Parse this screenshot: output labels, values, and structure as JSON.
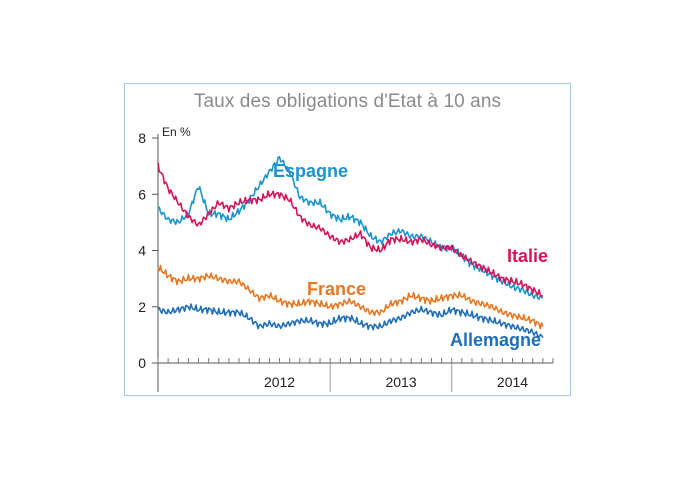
{
  "chart_data": {
    "type": "line",
    "title": "Taux des obligations d'Etat à 10 ans",
    "ylabel": "En %",
    "ylim": [
      0,
      8
    ],
    "yticks": [
      "0",
      "2",
      "4",
      "6",
      "8"
    ],
    "xlim": [
      "2011-07",
      "2014-10"
    ],
    "year_labels": [
      {
        "label": "2012",
        "mid": "2012-07"
      },
      {
        "label": "2013",
        "mid": "2013-07"
      },
      {
        "label": "2014",
        "mid": "2014-06"
      }
    ],
    "year_boundaries": [
      "2012-12",
      "2013-12"
    ],
    "series": [
      {
        "name": "Espagne",
        "color": "#1a94cc",
        "points": [
          [
            "2011-07",
            5.5
          ],
          [
            "2011-08",
            5.1
          ],
          [
            "2011-09",
            5.0
          ],
          [
            "2011-10",
            5.3
          ],
          [
            "2011-11",
            6.3
          ],
          [
            "2011-12",
            5.3
          ],
          [
            "2012-01",
            5.3
          ],
          [
            "2012-02",
            5.1
          ],
          [
            "2012-03",
            5.4
          ],
          [
            "2012-04",
            5.8
          ],
          [
            "2012-05",
            6.3
          ],
          [
            "2012-06",
            6.8
          ],
          [
            "2012-07",
            7.3
          ],
          [
            "2012-08",
            6.8
          ],
          [
            "2012-09",
            5.9
          ],
          [
            "2012-10",
            5.7
          ],
          [
            "2012-11",
            5.7
          ],
          [
            "2012-12",
            5.3
          ],
          [
            "2013-01",
            5.1
          ],
          [
            "2013-02",
            5.2
          ],
          [
            "2013-03",
            5.0
          ],
          [
            "2013-04",
            4.5
          ],
          [
            "2013-05",
            4.3
          ],
          [
            "2013-06",
            4.6
          ],
          [
            "2013-07",
            4.7
          ],
          [
            "2013-08",
            4.5
          ],
          [
            "2013-09",
            4.5
          ],
          [
            "2013-10",
            4.3
          ],
          [
            "2013-11",
            4.1
          ],
          [
            "2013-12",
            4.1
          ],
          [
            "2014-01",
            3.8
          ],
          [
            "2014-02",
            3.5
          ],
          [
            "2014-03",
            3.3
          ],
          [
            "2014-04",
            3.1
          ],
          [
            "2014-05",
            2.9
          ],
          [
            "2014-06",
            2.7
          ],
          [
            "2014-07",
            2.6
          ],
          [
            "2014-08",
            2.4
          ],
          [
            "2014-09",
            2.3
          ]
        ]
      },
      {
        "name": "Italie",
        "color": "#d4145a",
        "points": [
          [
            "2011-07",
            7.0
          ],
          [
            "2011-08",
            6.2
          ],
          [
            "2011-09",
            5.7
          ],
          [
            "2011-10",
            5.2
          ],
          [
            "2011-11",
            4.9
          ],
          [
            "2011-12",
            5.3
          ],
          [
            "2012-01",
            5.7
          ],
          [
            "2012-02",
            5.5
          ],
          [
            "2012-03",
            5.7
          ],
          [
            "2012-04",
            5.8
          ],
          [
            "2012-05",
            5.8
          ],
          [
            "2012-06",
            6.0
          ],
          [
            "2012-07",
            6.0
          ],
          [
            "2012-08",
            5.8
          ],
          [
            "2012-09",
            5.2
          ],
          [
            "2012-10",
            4.9
          ],
          [
            "2012-11",
            4.8
          ],
          [
            "2012-12",
            4.5
          ],
          [
            "2013-01",
            4.3
          ],
          [
            "2013-02",
            4.4
          ],
          [
            "2013-03",
            4.6
          ],
          [
            "2013-04",
            4.1
          ],
          [
            "2013-05",
            4.0
          ],
          [
            "2013-06",
            4.4
          ],
          [
            "2013-07",
            4.4
          ],
          [
            "2013-08",
            4.3
          ],
          [
            "2013-09",
            4.4
          ],
          [
            "2013-10",
            4.2
          ],
          [
            "2013-11",
            4.1
          ],
          [
            "2013-12",
            4.1
          ],
          [
            "2014-01",
            3.8
          ],
          [
            "2014-02",
            3.6
          ],
          [
            "2014-03",
            3.4
          ],
          [
            "2014-04",
            3.2
          ],
          [
            "2014-05",
            3.0
          ],
          [
            "2014-06",
            2.9
          ],
          [
            "2014-07",
            2.8
          ],
          [
            "2014-08",
            2.6
          ],
          [
            "2014-09",
            2.4
          ]
        ]
      },
      {
        "name": "France",
        "color": "#e87722",
        "points": [
          [
            "2011-07",
            3.4
          ],
          [
            "2011-08",
            3.1
          ],
          [
            "2011-09",
            2.9
          ],
          [
            "2011-10",
            3.0
          ],
          [
            "2011-11",
            3.0
          ],
          [
            "2011-12",
            3.1
          ],
          [
            "2012-01",
            3.0
          ],
          [
            "2012-02",
            2.9
          ],
          [
            "2012-03",
            2.9
          ],
          [
            "2012-04",
            2.6
          ],
          [
            "2012-05",
            2.3
          ],
          [
            "2012-06",
            2.4
          ],
          [
            "2012-07",
            2.2
          ],
          [
            "2012-08",
            2.1
          ],
          [
            "2012-09",
            2.1
          ],
          [
            "2012-10",
            2.2
          ],
          [
            "2012-11",
            2.1
          ],
          [
            "2012-12",
            2.0
          ],
          [
            "2013-01",
            2.1
          ],
          [
            "2013-02",
            2.2
          ],
          [
            "2013-03",
            2.0
          ],
          [
            "2013-04",
            1.8
          ],
          [
            "2013-05",
            1.8
          ],
          [
            "2013-06",
            2.1
          ],
          [
            "2013-07",
            2.2
          ],
          [
            "2013-08",
            2.4
          ],
          [
            "2013-09",
            2.3
          ],
          [
            "2013-10",
            2.2
          ],
          [
            "2013-11",
            2.3
          ],
          [
            "2013-12",
            2.4
          ],
          [
            "2014-01",
            2.4
          ],
          [
            "2014-02",
            2.2
          ],
          [
            "2014-03",
            2.1
          ],
          [
            "2014-04",
            2.0
          ],
          [
            "2014-05",
            1.8
          ],
          [
            "2014-06",
            1.7
          ],
          [
            "2014-07",
            1.6
          ],
          [
            "2014-08",
            1.5
          ],
          [
            "2014-09",
            1.3
          ]
        ]
      },
      {
        "name": "Allemagne",
        "color": "#1f6eb8",
        "points": [
          [
            "2011-07",
            1.9
          ],
          [
            "2011-08",
            1.8
          ],
          [
            "2011-09",
            1.9
          ],
          [
            "2011-10",
            2.0
          ],
          [
            "2011-11",
            1.9
          ],
          [
            "2011-12",
            1.9
          ],
          [
            "2012-01",
            1.8
          ],
          [
            "2012-02",
            1.8
          ],
          [
            "2012-03",
            1.8
          ],
          [
            "2012-04",
            1.6
          ],
          [
            "2012-05",
            1.3
          ],
          [
            "2012-06",
            1.4
          ],
          [
            "2012-07",
            1.3
          ],
          [
            "2012-08",
            1.4
          ],
          [
            "2012-09",
            1.5
          ],
          [
            "2012-10",
            1.5
          ],
          [
            "2012-11",
            1.4
          ],
          [
            "2012-12",
            1.4
          ],
          [
            "2013-01",
            1.6
          ],
          [
            "2013-02",
            1.6
          ],
          [
            "2013-03",
            1.4
          ],
          [
            "2013-04",
            1.3
          ],
          [
            "2013-05",
            1.3
          ],
          [
            "2013-06",
            1.5
          ],
          [
            "2013-07",
            1.6
          ],
          [
            "2013-08",
            1.8
          ],
          [
            "2013-09",
            1.9
          ],
          [
            "2013-10",
            1.8
          ],
          [
            "2013-11",
            1.7
          ],
          [
            "2013-12",
            1.9
          ],
          [
            "2014-01",
            1.8
          ],
          [
            "2014-02",
            1.7
          ],
          [
            "2014-03",
            1.6
          ],
          [
            "2014-04",
            1.5
          ],
          [
            "2014-05",
            1.4
          ],
          [
            "2014-06",
            1.3
          ],
          [
            "2014-07",
            1.2
          ],
          [
            "2014-08",
            1.1
          ],
          [
            "2014-09",
            0.9
          ]
        ]
      }
    ]
  }
}
